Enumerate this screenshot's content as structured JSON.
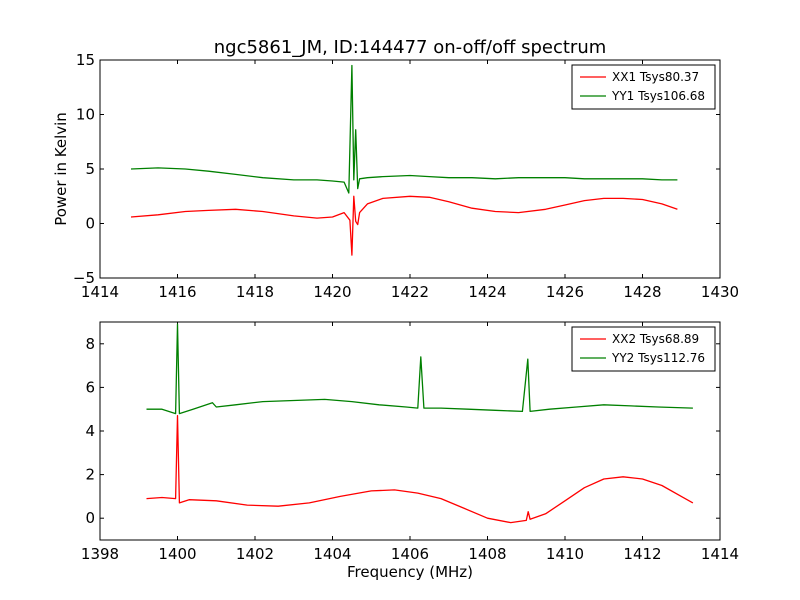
{
  "chart_data": {
    "title": "ngc5861_JM, ID:144477 on-off/off spectrum",
    "xlabel": "Frequency (MHz)",
    "ylabel": "Power in Kelvin",
    "panels": [
      {
        "type": "line",
        "xlim": [
          1414,
          1430
        ],
        "ylim": [
          -5,
          15
        ],
        "xticks": [
          1414,
          1416,
          1418,
          1420,
          1422,
          1424,
          1426,
          1428,
          1430
        ],
        "yticks": [
          -5,
          0,
          5,
          10,
          15
        ],
        "legend_position": "top-right",
        "series": [
          {
            "name": "XX1 Tsys80.37",
            "color": "#ff0000",
            "x": [
              1414.8,
              1415.5,
              1416.2,
              1416.8,
              1417.5,
              1418.2,
              1419.0,
              1419.6,
              1420.0,
              1420.3,
              1420.45,
              1420.5,
              1420.55,
              1420.6,
              1420.65,
              1420.7,
              1420.9,
              1421.3,
              1422.0,
              1422.5,
              1423.0,
              1423.6,
              1424.2,
              1424.8,
              1425.5,
              1426.0,
              1426.5,
              1427.0,
              1427.5,
              1428.0,
              1428.5,
              1428.9
            ],
            "values": [
              0.6,
              0.8,
              1.1,
              1.2,
              1.3,
              1.1,
              0.7,
              0.5,
              0.6,
              1.0,
              0.3,
              -2.9,
              2.5,
              0.2,
              -0.1,
              1.0,
              1.8,
              2.3,
              2.5,
              2.4,
              2.0,
              1.4,
              1.1,
              1.0,
              1.3,
              1.7,
              2.1,
              2.3,
              2.3,
              2.2,
              1.8,
              1.3
            ]
          },
          {
            "name": "YY1 Tsys106.68",
            "color": "#008000",
            "x": [
              1414.8,
              1415.5,
              1416.2,
              1416.8,
              1417.5,
              1418.2,
              1419.0,
              1419.6,
              1420.0,
              1420.3,
              1420.42,
              1420.5,
              1420.55,
              1420.6,
              1420.65,
              1420.7,
              1420.9,
              1421.3,
              1422.0,
              1422.5,
              1423.0,
              1423.6,
              1424.2,
              1424.8,
              1425.5,
              1426.0,
              1426.5,
              1427.0,
              1427.5,
              1428.0,
              1428.5,
              1428.9
            ],
            "values": [
              5.0,
              5.1,
              5.0,
              4.8,
              4.5,
              4.2,
              4.0,
              4.0,
              3.9,
              3.8,
              2.8,
              14.5,
              4.0,
              8.6,
              3.2,
              4.1,
              4.2,
              4.3,
              4.4,
              4.3,
              4.2,
              4.2,
              4.1,
              4.2,
              4.2,
              4.2,
              4.1,
              4.1,
              4.1,
              4.1,
              4.0,
              4.0
            ]
          }
        ]
      },
      {
        "type": "line",
        "xlim": [
          1398,
          1414
        ],
        "ylim": [
          -1,
          9
        ],
        "xticks": [
          1398,
          1400,
          1402,
          1404,
          1406,
          1408,
          1410,
          1412,
          1414
        ],
        "yticks": [
          0,
          2,
          4,
          6,
          8
        ],
        "legend_position": "top-right",
        "series": [
          {
            "name": "XX2 Tsys68.89",
            "color": "#ff0000",
            "x": [
              1399.2,
              1399.6,
              1399.95,
              1400.0,
              1400.05,
              1400.3,
              1401.0,
              1401.8,
              1402.6,
              1403.4,
              1404.2,
              1405.0,
              1405.6,
              1406.2,
              1406.8,
              1407.4,
              1408.0,
              1408.6,
              1409.0,
              1409.05,
              1409.1,
              1409.5,
              1410.0,
              1410.5,
              1411.0,
              1411.5,
              1412.0,
              1412.5,
              1413.0,
              1413.3
            ],
            "values": [
              0.9,
              0.95,
              0.9,
              4.7,
              0.7,
              0.85,
              0.8,
              0.6,
              0.55,
              0.7,
              1.0,
              1.25,
              1.3,
              1.15,
              0.9,
              0.45,
              0.0,
              -0.2,
              -0.1,
              0.3,
              -0.05,
              0.2,
              0.8,
              1.4,
              1.8,
              1.9,
              1.8,
              1.5,
              1.0,
              0.7
            ]
          },
          {
            "name": "YY2 Tsys112.76",
            "color": "#008000",
            "x": [
              1399.2,
              1399.6,
              1399.95,
              1400.0,
              1400.05,
              1400.4,
              1400.9,
              1401.0,
              1401.5,
              1402.2,
              1403.0,
              1403.8,
              1404.5,
              1405.2,
              1405.9,
              1406.2,
              1406.28,
              1406.36,
              1406.8,
              1407.5,
              1408.2,
              1408.9,
              1409.04,
              1409.1,
              1409.6,
              1410.3,
              1411.0,
              1411.7,
              1412.4,
              1413.3
            ],
            "values": [
              5.0,
              5.0,
              4.8,
              8.9,
              4.8,
              5.0,
              5.3,
              5.1,
              5.2,
              5.35,
              5.4,
              5.45,
              5.35,
              5.2,
              5.1,
              5.05,
              7.4,
              5.05,
              5.05,
              5.0,
              4.95,
              4.9,
              7.3,
              4.9,
              5.0,
              5.1,
              5.2,
              5.15,
              5.1,
              5.05
            ]
          }
        ]
      }
    ]
  }
}
